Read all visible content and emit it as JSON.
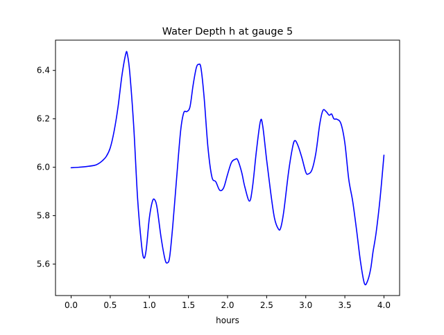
{
  "chart_data": {
    "type": "line",
    "title": "Water Depth h at gauge 5",
    "xlabel": "hours",
    "ylabel": "",
    "xlim": [
      -0.2,
      4.2
    ],
    "ylim": [
      5.47,
      6.525
    ],
    "xticks": [
      0.0,
      0.5,
      1.0,
      1.5,
      2.0,
      2.5,
      3.0,
      3.5,
      4.0
    ],
    "xtick_labels": [
      "0.0",
      "0.5",
      "1.0",
      "1.5",
      "2.0",
      "2.5",
      "3.0",
      "3.5",
      "4.0"
    ],
    "yticks": [
      5.6,
      5.8,
      6.0,
      6.2,
      6.4
    ],
    "ytick_labels": [
      "5.6",
      "5.8",
      "6.0",
      "6.2",
      "6.4"
    ],
    "grid": false,
    "series": [
      {
        "color": "#0000ff",
        "x": [
          0.0,
          0.1,
          0.2,
          0.3,
          0.35,
          0.4,
          0.45,
          0.5,
          0.55,
          0.6,
          0.65,
          0.7,
          0.72,
          0.75,
          0.8,
          0.85,
          0.9,
          0.93,
          0.96,
          1.0,
          1.04,
          1.07,
          1.1,
          1.15,
          1.2,
          1.23,
          1.26,
          1.3,
          1.35,
          1.4,
          1.44,
          1.48,
          1.52,
          1.56,
          1.6,
          1.63,
          1.66,
          1.7,
          1.75,
          1.8,
          1.85,
          1.9,
          1.95,
          2.0,
          2.05,
          2.1,
          2.13,
          2.18,
          2.22,
          2.28,
          2.32,
          2.37,
          2.42,
          2.45,
          2.5,
          2.55,
          2.6,
          2.65,
          2.68,
          2.72,
          2.78,
          2.83,
          2.86,
          2.9,
          2.95,
          3.0,
          3.03,
          3.08,
          3.13,
          3.18,
          3.22,
          3.26,
          3.3,
          3.33,
          3.36,
          3.4,
          3.45,
          3.5,
          3.55,
          3.6,
          3.65,
          3.7,
          3.75,
          3.79,
          3.83,
          3.86,
          3.9,
          3.95,
          4.0
        ],
        "y": [
          5.998,
          6.0,
          6.003,
          6.008,
          6.015,
          6.027,
          6.045,
          6.08,
          6.15,
          6.25,
          6.38,
          6.47,
          6.465,
          6.39,
          6.17,
          5.87,
          5.68,
          5.625,
          5.66,
          5.79,
          5.86,
          5.865,
          5.83,
          5.71,
          5.62,
          5.605,
          5.63,
          5.76,
          5.96,
          6.15,
          6.225,
          6.23,
          6.25,
          6.34,
          6.41,
          6.425,
          6.41,
          6.29,
          6.08,
          5.96,
          5.94,
          5.905,
          5.915,
          5.97,
          6.02,
          6.033,
          6.03,
          5.98,
          5.92,
          5.86,
          5.92,
          6.07,
          6.19,
          6.17,
          6.03,
          5.9,
          5.79,
          5.745,
          5.75,
          5.82,
          5.98,
          6.08,
          6.11,
          6.09,
          6.04,
          5.98,
          5.972,
          5.99,
          6.06,
          6.18,
          6.235,
          6.23,
          6.215,
          6.22,
          6.2,
          6.198,
          6.18,
          6.1,
          5.95,
          5.86,
          5.74,
          5.61,
          5.52,
          5.53,
          5.58,
          5.65,
          5.73,
          5.87,
          6.05
        ]
      }
    ]
  }
}
